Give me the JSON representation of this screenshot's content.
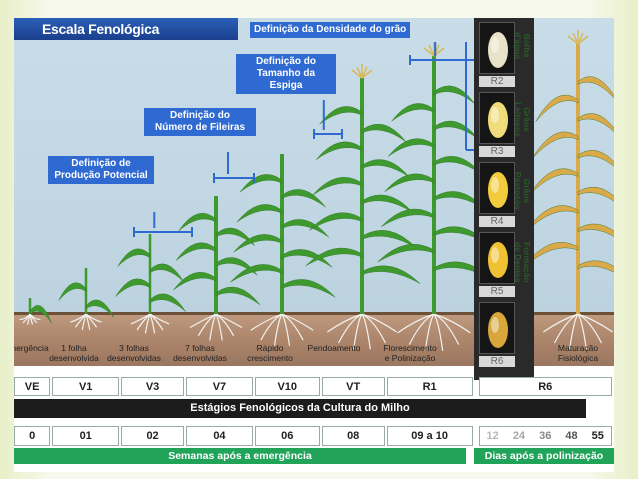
{
  "title": "Escala Fenológica",
  "labels": {
    "densidade": "Definição da Densidade do grão",
    "tamanho": "Definição do\nTamanho da Espiga",
    "fileiras": "Definição do\nNúmero de Fileiras",
    "producao": "Definição de\nProdução Potencial"
  },
  "grain_stages": [
    {
      "code": "R2",
      "label": "Bolha\nd'água"
    },
    {
      "code": "R3",
      "label": "Grãos\nLeitosos"
    },
    {
      "code": "R4",
      "label": "Grãos\nPastosos"
    },
    {
      "code": "R5",
      "label": "Formação\nde Dentes"
    },
    {
      "code": "R6",
      "label": ""
    }
  ],
  "stage_names": [
    "Emergência",
    "1 folha\ndesenvolvida",
    "3 folhas\ndesenvolvidas",
    "7 folhas\ndesenvolvidas",
    "Rápido\ncrescimento",
    "Pendoamento",
    "Florescimento\ne Polinização",
    "Maturação\nFisiológica"
  ],
  "stage_codes": [
    "VE",
    "V1",
    "V3",
    "V7",
    "V10",
    "VT",
    "R1",
    "R6"
  ],
  "stages_caption": "Estágios Fenológicos da Cultura do Milho",
  "weeks": [
    "0",
    "01",
    "02",
    "04",
    "06",
    "08",
    "09 a 10"
  ],
  "days": [
    "12",
    "24",
    "36",
    "48",
    "55"
  ],
  "weeks_caption": "Semanas após a emergência",
  "days_caption": "Dias após a polinização",
  "colors": {
    "accent": "#2f6ad2",
    "green": "#22a35a",
    "plant": "#3e9a2e",
    "dry": "#d9a94a"
  }
}
